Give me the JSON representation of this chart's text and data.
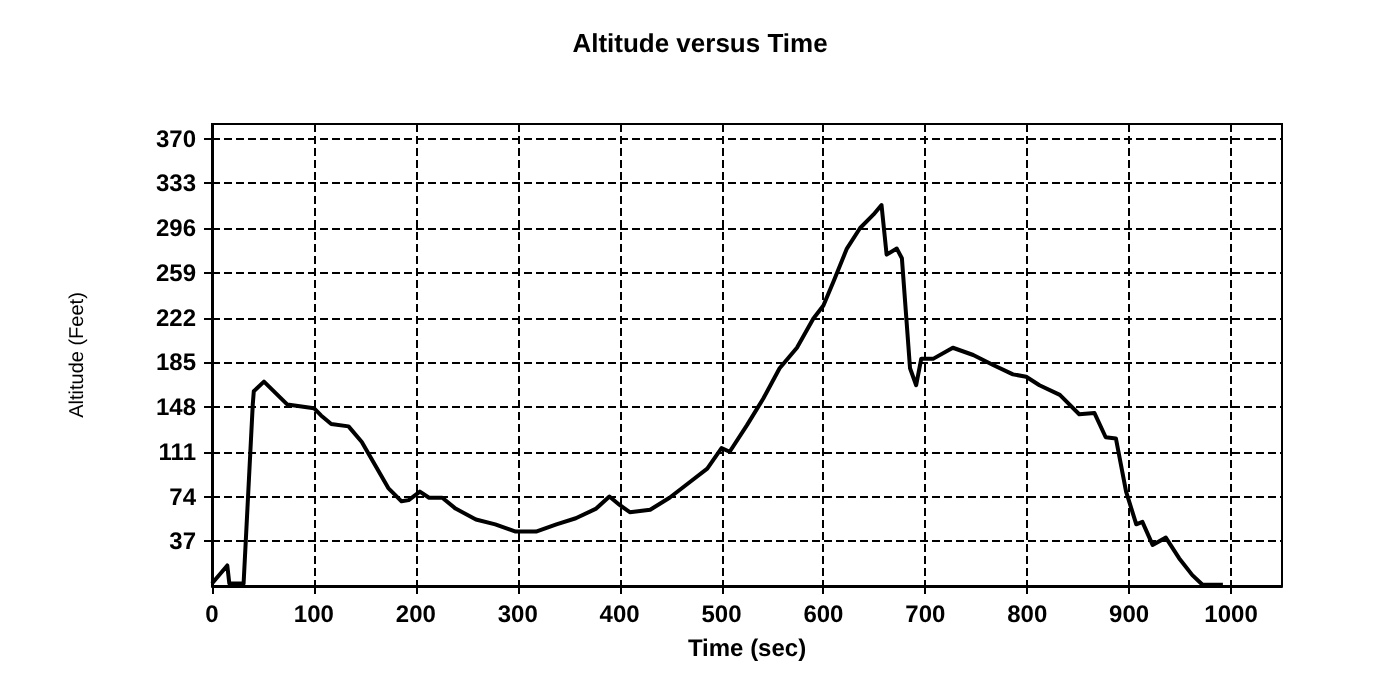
{
  "chart_data": {
    "type": "line",
    "title": "Altitude versus Time",
    "xlabel": "Time (sec)",
    "ylabel": "Altitude (Feet)",
    "xlim": [
      0,
      1050
    ],
    "ylim": [
      0,
      382
    ],
    "xticks": [
      0,
      100,
      200,
      300,
      400,
      500,
      600,
      700,
      800,
      900,
      1000
    ],
    "yticks": [
      37,
      74,
      111,
      148,
      185,
      222,
      259,
      296,
      333,
      370
    ],
    "grid": true,
    "marker": "none",
    "line_style": "solid",
    "series": [
      {
        "color": "#000000",
        "x": [
          0,
          15,
          17,
          31,
          40,
          41,
          51,
          74,
          100,
          107,
          117,
          134,
          147,
          160,
          173,
          186,
          193,
          204,
          213,
          226,
          239,
          259,
          278,
          298,
          318,
          338,
          357,
          377,
          390,
          400,
          410,
          430,
          449,
          469,
          486,
          500,
          508,
          525,
          541,
          557,
          574,
          590,
          600,
          610,
          623,
          636,
          649,
          657,
          662,
          672,
          677,
          685,
          691,
          696,
          708,
          727,
          747,
          766,
          786,
          799,
          812,
          832,
          851,
          866,
          877,
          887,
          897,
          907,
          913,
          923,
          936,
          949,
          962,
          972,
          992
        ],
        "values": [
          2,
          17,
          2,
          2,
          150,
          161,
          169,
          150,
          147,
          141,
          134,
          132,
          119,
          100,
          81,
          70,
          71,
          78,
          73,
          73,
          64,
          55,
          51,
          45,
          45,
          51,
          56,
          64,
          74,
          67,
          61,
          63,
          73,
          86,
          97,
          114,
          111,
          133,
          155,
          180,
          197,
          221,
          232,
          252,
          279,
          296,
          307,
          315,
          274,
          279,
          271,
          180,
          166,
          188,
          188,
          197,
          191,
          183,
          175,
          173,
          166,
          158,
          142,
          143,
          123,
          122,
          78,
          51,
          53,
          34,
          40,
          23,
          9,
          1,
          1
        ]
      }
    ]
  }
}
